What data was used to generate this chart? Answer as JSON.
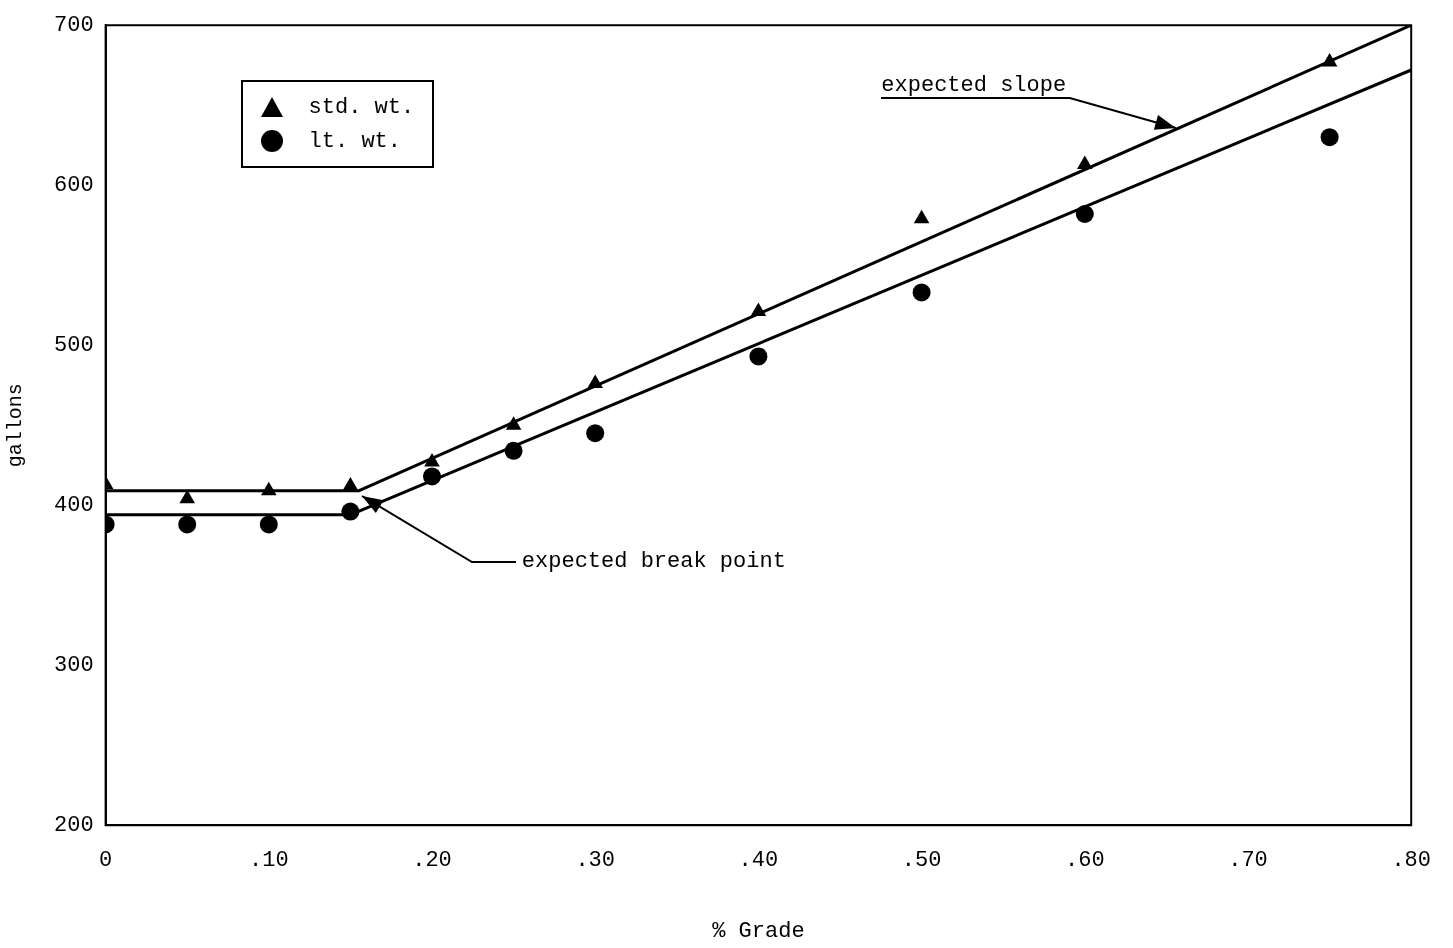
{
  "chart_data": {
    "type": "scatter",
    "xlabel": "% Grade",
    "ylabel": "gallons",
    "xlim": [
      0,
      0.8
    ],
    "ylim": [
      200,
      700
    ],
    "xticks": [
      0,
      {
        "value": 0.1,
        "label": ".10"
      },
      {
        "value": 0.2,
        "label": ".20"
      },
      {
        "value": 0.3,
        "label": ".30"
      },
      {
        "value": 0.4,
        "label": ".40"
      },
      {
        "value": 0.5,
        "label": ".50"
      },
      {
        "value": 0.6,
        "label": ".60"
      },
      {
        "value": 0.7,
        "label": ".70"
      },
      {
        "value": 0.8,
        "label": ".80"
      }
    ],
    "yticks": [
      200,
      300,
      400,
      500,
      600,
      700
    ],
    "grid": false,
    "legend": "top left",
    "series": [
      {
        "name": "std. wt.",
        "type": "scatter",
        "marker": "triangle",
        "color": "#000000",
        "x": [
          0,
          0.05,
          0.1,
          0.15,
          0.2,
          0.25,
          0.3,
          0.4,
          0.5,
          0.6,
          0.75
        ],
        "values": [
          413,
          404,
          409,
          412,
          427,
          450,
          476,
          521,
          579,
          613,
          677
        ]
      },
      {
        "name": "lt. wt.",
        "type": "scatter",
        "marker": "circle",
        "color": "#000000",
        "x": [
          0,
          0.05,
          0.1,
          0.15,
          0.2,
          0.25,
          0.3,
          0.4,
          0.5,
          0.6,
          0.75
        ],
        "values": [
          388,
          388,
          388,
          396,
          418,
          434,
          445,
          493,
          533,
          582,
          630
        ]
      },
      {
        "type": "line",
        "marker": "none",
        "color": "#000000",
        "x": [
          0,
          0.155,
          0.8
        ],
        "values": [
          409,
          409,
          700
        ]
      },
      {
        "type": "line",
        "marker": "none",
        "color": "#000000",
        "x": [
          0,
          0.15,
          0.8
        ],
        "values": [
          394,
          394,
          672
        ]
      }
    ],
    "annotations": [
      {
        "text": "expected slope",
        "x": 0.656,
        "y": 636
      },
      {
        "text": "expected break point",
        "x": 0.157,
        "y": 406
      }
    ]
  }
}
